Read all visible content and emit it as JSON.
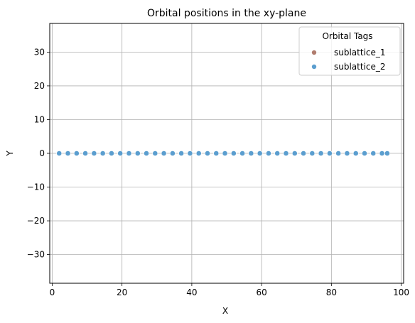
{
  "chart_data": {
    "type": "scatter",
    "title": "Orbital positions in the xy-plane",
    "xlabel": "X",
    "ylabel": "Y",
    "xlim": [
      -0.7,
      100.7
    ],
    "ylim": [
      -38.5,
      38.5
    ],
    "xticks": [
      0,
      20,
      40,
      60,
      80,
      100
    ],
    "yticks": [
      -30,
      -20,
      -10,
      0,
      10,
      20,
      30
    ],
    "xtick_labels": [
      "0",
      "20",
      "40",
      "60",
      "80",
      "100"
    ],
    "ytick_labels": [
      "−30",
      "−20",
      "−10",
      "0",
      "10",
      "20",
      "30"
    ],
    "grid": true,
    "legend": {
      "title": "Orbital Tags",
      "position": "top-right"
    },
    "series": [
      {
        "name": "sublattice_1",
        "color": "#b07c6e",
        "x": [
          2.0,
          7.0,
          12.0,
          17.0,
          22.0,
          27.0,
          32.0,
          37.0,
          42.0,
          47.0,
          52.0,
          57.0,
          62.0,
          67.0,
          72.0,
          77.0,
          82.0,
          87.0,
          92.0
        ],
        "y": [
          0,
          0,
          0,
          0,
          0,
          0,
          0,
          0,
          0,
          0,
          0,
          0,
          0,
          0,
          0,
          0,
          0,
          0,
          0
        ]
      },
      {
        "name": "sublattice_2",
        "color": "#5b9ecf",
        "x": [
          2.0,
          4.5,
          7.0,
          9.5,
          12.0,
          14.5,
          17.0,
          19.5,
          22.0,
          24.5,
          27.0,
          29.5,
          32.0,
          34.5,
          37.0,
          39.5,
          42.0,
          44.5,
          47.0,
          49.5,
          52.0,
          54.5,
          57.0,
          59.5,
          62.0,
          64.5,
          67.0,
          69.5,
          72.0,
          74.5,
          77.0,
          79.5,
          82.0,
          84.5,
          87.0,
          89.5,
          92.0,
          94.5,
          96.0
        ],
        "y": [
          0,
          0,
          0,
          0,
          0,
          0,
          0,
          0,
          0,
          0,
          0,
          0,
          0,
          0,
          0,
          0,
          0,
          0,
          0,
          0,
          0,
          0,
          0,
          0,
          0,
          0,
          0,
          0,
          0,
          0,
          0,
          0,
          0,
          0,
          0,
          0,
          0,
          0,
          0
        ]
      }
    ]
  }
}
